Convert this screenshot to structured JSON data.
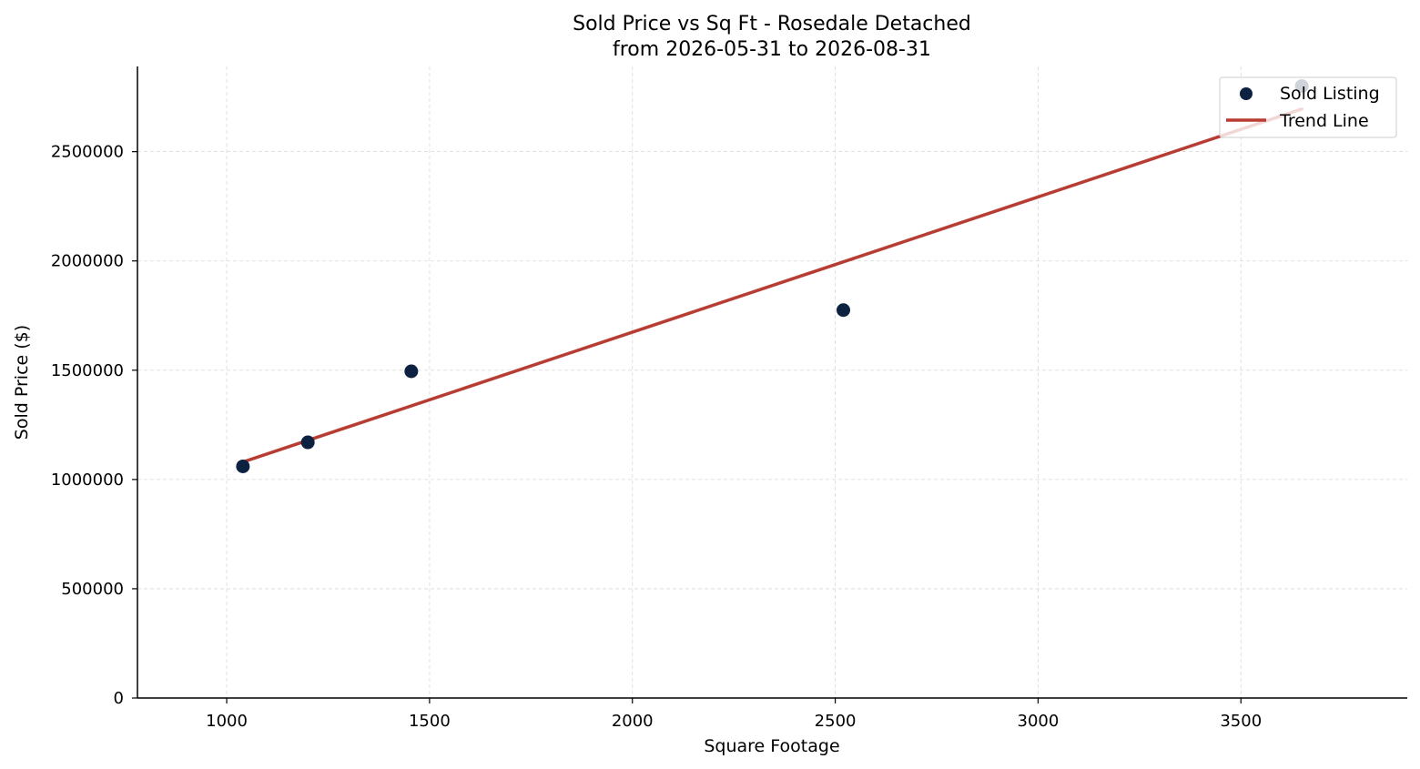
{
  "chart_data": {
    "type": "scatter",
    "title": "Sold Price vs Sq Ft - Rosedale Detached",
    "subtitle": "from 2026-05-31 to 2026-08-31",
    "xlabel": "Square Footage",
    "ylabel": "Sold Price ($)",
    "xlim": [
      780,
      3910
    ],
    "ylim": [
      0,
      2890000
    ],
    "xticks": [
      1000,
      1500,
      2000,
      2500,
      3000,
      3500
    ],
    "yticks": [
      0,
      500000,
      1000000,
      1500000,
      2000000,
      2500000
    ],
    "xtick_labels": [
      "1000",
      "1500",
      "2000",
      "2500",
      "3000",
      "3500"
    ],
    "ytick_labels": [
      "0",
      "500000",
      "1000000",
      "1500000",
      "2000000",
      "2500000"
    ],
    "grid": true,
    "legend_position": "top-right",
    "series": [
      {
        "name": "Sold Listing",
        "kind": "scatter",
        "color": "#0d2240",
        "x": [
          1040,
          1200,
          1455,
          2520,
          3650
        ],
        "y": [
          1060000,
          1170000,
          1495000,
          1775000,
          2800000
        ]
      },
      {
        "name": "Trend Line",
        "kind": "line",
        "color": "#b83c31",
        "x": [
          1040,
          3650
        ],
        "y": [
          1080000,
          2695000
        ]
      }
    ]
  }
}
